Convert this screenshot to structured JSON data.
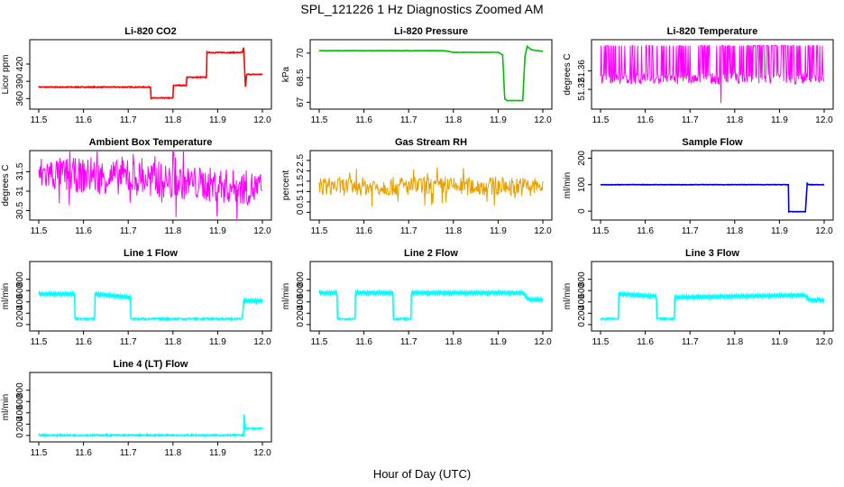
{
  "figure": {
    "title": "SPL_121226  1 Hz Diagnostics Zoomed AM",
    "xlabel": "Hour of Day (UTC)"
  },
  "chart_data": [
    {
      "type": "line",
      "title": "Li-820 CO2",
      "ylabel": "Licor ppm",
      "color": "#ff0000",
      "xlim": [
        11.5,
        12.0
      ],
      "ylim": [
        348,
        456
      ],
      "xticks": [
        "11.5",
        "11.6",
        "11.7",
        "11.8",
        "11.9",
        "12.0"
      ],
      "yticks": [
        360,
        390,
        420
      ],
      "series": [
        {
          "x": [
            11.5,
            11.75,
            11.751,
            11.8,
            11.801,
            11.83,
            11.831,
            11.875,
            11.876,
            11.955,
            11.958,
            11.962,
            11.965,
            12.0
          ],
          "y": [
            380,
            380,
            361,
            361,
            383,
            383,
            397,
            397,
            440,
            440,
            448,
            380,
            402,
            402
          ]
        }
      ]
    },
    {
      "type": "line",
      "title": "Li-820 Pressure",
      "ylabel": "kPa",
      "color": "#00c000",
      "xlim": [
        11.5,
        12.0
      ],
      "ylim": [
        66.8,
        70.6
      ],
      "xticks": [
        "11.5",
        "11.6",
        "11.7",
        "11.8",
        "11.9",
        "12.0"
      ],
      "yticks": [
        67.0,
        68.5,
        70.0
      ],
      "series": [
        {
          "x": [
            11.5,
            11.78,
            11.8,
            11.9,
            11.91,
            11.915,
            11.92,
            11.955,
            11.96,
            11.965,
            11.975,
            12.0
          ],
          "y": [
            70.15,
            70.15,
            70.05,
            70.05,
            69.9,
            67.2,
            67.1,
            67.1,
            69.8,
            70.4,
            70.2,
            70.1
          ]
        }
      ]
    },
    {
      "type": "line",
      "title": "Li-820 Temperature",
      "ylabel": "degrees C",
      "color": "#ff00ff",
      "xlim": [
        11.5,
        12.0
      ],
      "ylim": [
        51.285,
        51.42
      ],
      "xticks": [
        "11.5",
        "11.6",
        "11.7",
        "11.8",
        "11.9",
        "12.0"
      ],
      "yticks": [
        51.32,
        51.36
      ],
      "series": [
        {
          "name": "",
          "x": [
            11.5,
            12.0
          ],
          "y": [
            51.345,
            51.345
          ]
        }
      ],
      "noise": {
        "base": 51.343,
        "amp": 0.012,
        "spike_high": 51.415,
        "spike_low": 51.29
      }
    },
    {
      "type": "line",
      "title": "Ambient Box Temperature",
      "ylabel": "degrees C",
      "color": "#ff00ff",
      "xlim": [
        11.5,
        12.0
      ],
      "ylim": [
        30.35,
        31.95
      ],
      "xticks": [
        "11.5",
        "11.6",
        "11.7",
        "11.8",
        "11.9",
        "12.0"
      ],
      "yticks": [
        30.5,
        31.0,
        31.5
      ],
      "series": [
        {
          "x": [
            11.5,
            11.7,
            11.85,
            12.0
          ],
          "y": [
            31.45,
            31.35,
            31.2,
            31.05
          ]
        }
      ],
      "noise": {
        "amp": 0.45
      }
    },
    {
      "type": "line",
      "title": "Gas Stream RH",
      "ylabel": "percent",
      "color": "#e8a000",
      "xlim": [
        11.5,
        12.0
      ],
      "ylim": [
        -0.2,
        2.8
      ],
      "xticks": [
        "11.5",
        "11.6",
        "11.7",
        "11.8",
        "11.9",
        "12.0"
      ],
      "yticks": [
        0.0,
        0.5,
        1.0,
        1.5,
        2.0,
        2.5
      ],
      "series": [
        {
          "x": [
            11.5,
            12.0
          ],
          "y": [
            1.25,
            1.25
          ]
        }
      ],
      "noise": {
        "amp": 0.45
      }
    },
    {
      "type": "line",
      "title": "Sample Flow",
      "ylabel": "ml/min",
      "color": "#0000cc",
      "xlim": [
        11.5,
        12.0
      ],
      "ylim": [
        -20,
        215
      ],
      "xticks": [
        "11.5",
        "11.6",
        "11.7",
        "11.8",
        "11.9",
        "12.0"
      ],
      "yticks": [
        0,
        100,
        200
      ],
      "series": [
        {
          "x": [
            11.5,
            11.92,
            11.921,
            11.958,
            11.962,
            11.965,
            12.0
          ],
          "y": [
            100,
            100,
            -2,
            -2,
            105,
            100,
            100
          ]
        }
      ]
    },
    {
      "type": "line",
      "title": "Line 1 Flow",
      "ylabel": "ml/min",
      "color": "#00ffff",
      "xlim": [
        11.5,
        12.0
      ],
      "ylim": [
        -50,
        1050
      ],
      "xticks": [
        "11.5",
        "11.6",
        "11.7",
        "11.8",
        "11.9",
        "12.0"
      ],
      "yticks": [
        0,
        200,
        400,
        600,
        800
      ],
      "series": [
        {
          "x": [
            11.5,
            11.58,
            11.581,
            11.625,
            11.626,
            11.705,
            11.706,
            11.955,
            11.958,
            12.0
          ],
          "y": [
            540,
            540,
            100,
            100,
            540,
            480,
            100,
            100,
            420,
            420
          ]
        }
      ]
    },
    {
      "type": "line",
      "title": "Line 2 Flow",
      "ylabel": "ml/min",
      "color": "#00ffff",
      "xlim": [
        11.5,
        12.0
      ],
      "ylim": [
        -50,
        1050
      ],
      "xticks": [
        "11.5",
        "11.6",
        "11.7",
        "11.8",
        "11.9",
        "12.0"
      ],
      "yticks": [
        0,
        200,
        400,
        600,
        800
      ],
      "series": [
        {
          "x": [
            11.5,
            11.54,
            11.541,
            11.58,
            11.581,
            11.665,
            11.666,
            11.705,
            11.706,
            11.955,
            11.97,
            12.0
          ],
          "y": [
            560,
            560,
            100,
            100,
            560,
            560,
            100,
            100,
            560,
            560,
            440,
            440
          ]
        }
      ]
    },
    {
      "type": "line",
      "title": "Line 3 Flow",
      "ylabel": "ml/min",
      "color": "#00ffff",
      "xlim": [
        11.5,
        12.0
      ],
      "ylim": [
        -50,
        1050
      ],
      "xticks": [
        "11.5",
        "11.6",
        "11.7",
        "11.8",
        "11.9",
        "12.0"
      ],
      "yticks": [
        0,
        200,
        400,
        600,
        800
      ],
      "series": [
        {
          "x": [
            11.5,
            11.54,
            11.541,
            11.625,
            11.626,
            11.665,
            11.666,
            11.955,
            11.97,
            12.0
          ],
          "y": [
            100,
            100,
            540,
            500,
            100,
            100,
            480,
            520,
            430,
            430
          ]
        }
      ]
    },
    {
      "type": "line",
      "title": "Line 4 (LT) Flow",
      "ylabel": "ml/min",
      "color": "#00ffff",
      "xlim": [
        11.5,
        12.0
      ],
      "ylim": [
        -50,
        1050
      ],
      "xticks": [
        "11.5",
        "11.6",
        "11.7",
        "11.8",
        "11.9",
        "12.0"
      ],
      "yticks": [
        0,
        200,
        400,
        600,
        800
      ],
      "series": [
        {
          "x": [
            11.5,
            11.958,
            11.959,
            11.962,
            11.963,
            12.0
          ],
          "y": [
            5,
            5,
            350,
            120,
            120,
            120
          ]
        }
      ]
    }
  ]
}
